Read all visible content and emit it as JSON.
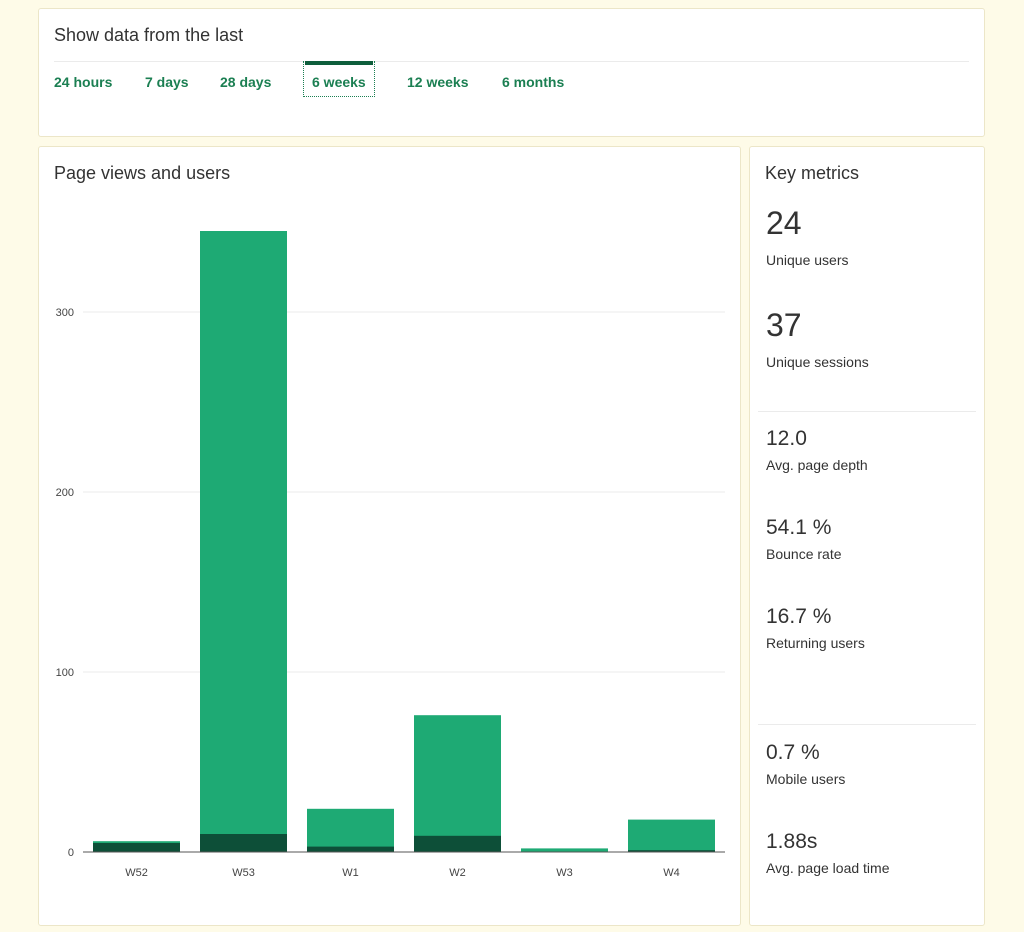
{
  "range": {
    "title": "Show data from the last",
    "options": [
      {
        "label": "24 hours"
      },
      {
        "label": "7 days"
      },
      {
        "label": "28 days"
      },
      {
        "label": "6 weeks",
        "active": true
      },
      {
        "label": "12 weeks"
      },
      {
        "label": "6 months"
      }
    ]
  },
  "chart": {
    "title": "Page views and users"
  },
  "chart_data": {
    "type": "bar",
    "stacked": false,
    "title": "Page views and users",
    "categories": [
      "W52",
      "W53",
      "W1",
      "W2",
      "W3",
      "W4"
    ],
    "series": [
      {
        "color": "#1eaa74",
        "values": [
          6,
          345,
          24,
          76,
          2,
          18
        ]
      },
      {
        "color": "#0d4f38",
        "values": [
          5,
          10,
          3,
          9,
          0,
          1
        ]
      }
    ],
    "yticks": [
      0,
      100,
      200,
      300
    ],
    "ylim": [
      0,
      380
    ],
    "grid": true,
    "legend": "none"
  },
  "metrics": {
    "title": "Key metrics",
    "unique_users": {
      "value": "24",
      "label": "Unique users"
    },
    "unique_sessions": {
      "value": "37",
      "label": "Unique sessions"
    },
    "page_depth": {
      "value": "12.0",
      "label": "Avg. page depth"
    },
    "bounce_rate": {
      "value": "54.1 %",
      "label": "Bounce rate"
    },
    "returning_users": {
      "value": "16.7 %",
      "label": "Returning users"
    },
    "mobile_users": {
      "value": "0.7 %",
      "label": "Mobile users"
    },
    "load_time": {
      "value": "1.88s",
      "label": "Avg. page load time"
    }
  },
  "colors": {
    "accent": "#1b7f52",
    "bar_light": "#1eaa74",
    "bar_dark": "#0d4f38",
    "background": "#fefbe8"
  }
}
